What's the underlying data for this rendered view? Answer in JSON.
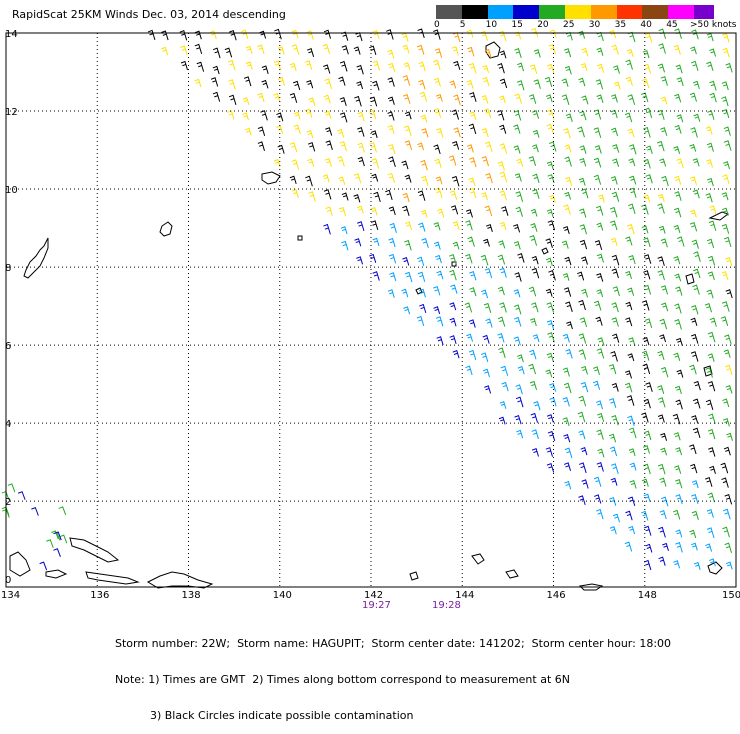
{
  "title": "RapidScat 25KM Winds Dec. 03, 2014 descending",
  "legend": {
    "labels": [
      "0",
      "5",
      "10",
      "15",
      "20",
      "25",
      "30",
      "35",
      "40",
      "45",
      ">50 knots"
    ],
    "colors": [
      "#555555",
      "#000000",
      "#00a0ff",
      "#0000cc",
      "#22aa22",
      "#ffe000",
      "#ff9900",
      "#ff3300",
      "#8b4513",
      "#ff00ff",
      "#7700cc"
    ]
  },
  "axes": {
    "x_ticks": [
      "134",
      "136",
      "138",
      "140",
      "142",
      "144",
      "146",
      "148",
      "150"
    ],
    "y_ticks": [
      "0",
      "2",
      "4",
      "6",
      "8",
      "10",
      "12",
      "14"
    ]
  },
  "times": [
    "19:27",
    "19:28"
  ],
  "notes": [
    "Storm number: 22W;  Storm name: HAGUPIT;  Storm center date: 141202;  Storm center hour: 18:00",
    "Note: 1) Times are GMT  2) Times along bottom correspond to measurement at 6N",
    "          3) Black Circles indicate possible contamination"
  ]
}
